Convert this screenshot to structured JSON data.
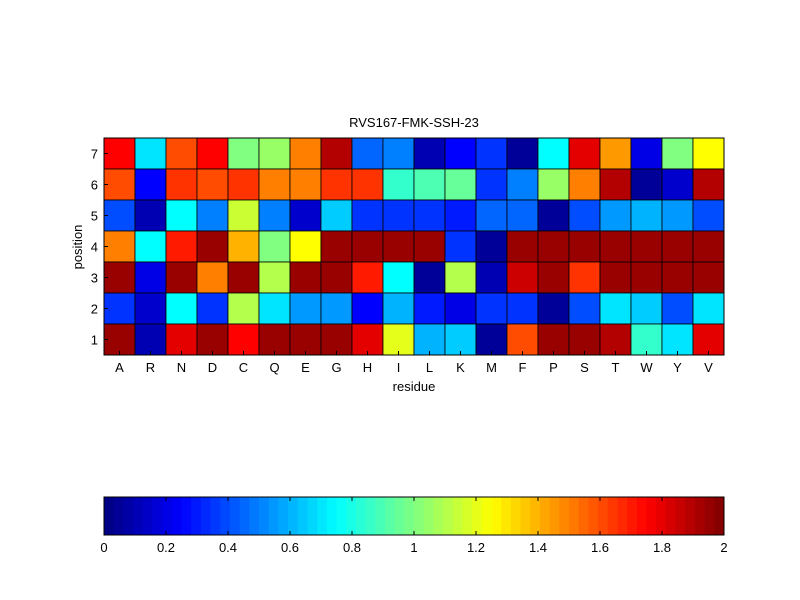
{
  "chart_data": {
    "type": "heatmap",
    "title": "RVS167-FMK-SSH-23",
    "xlabel": "residue",
    "ylabel": "position",
    "x_categories": [
      "A",
      "R",
      "N",
      "D",
      "C",
      "Q",
      "E",
      "G",
      "H",
      "I",
      "L",
      "K",
      "M",
      "F",
      "P",
      "S",
      "T",
      "W",
      "Y",
      "V"
    ],
    "y_categories": [
      "7",
      "6",
      "5",
      "4",
      "3",
      "2",
      "1"
    ],
    "values": [
      [
        1.75,
        0.7,
        1.6,
        1.75,
        1.0,
        1.05,
        1.5,
        1.9,
        0.45,
        0.5,
        0.1,
        0.25,
        0.35,
        0.05,
        0.75,
        1.8,
        1.45,
        0.2,
        1.0,
        1.25
      ],
      [
        1.6,
        0.25,
        1.65,
        1.6,
        1.65,
        1.5,
        1.5,
        1.65,
        1.65,
        0.85,
        0.9,
        0.95,
        0.35,
        0.5,
        1.05,
        1.5,
        1.9,
        0.05,
        0.15,
        1.9
      ],
      [
        0.4,
        0.1,
        0.75,
        0.5,
        1.15,
        0.5,
        0.15,
        0.65,
        0.35,
        0.35,
        0.35,
        0.3,
        0.45,
        0.45,
        0.05,
        0.4,
        0.55,
        0.6,
        0.55,
        0.4
      ],
      [
        1.5,
        0.75,
        1.7,
        1.95,
        1.4,
        1.0,
        1.25,
        1.95,
        1.95,
        1.95,
        1.95,
        0.35,
        0.05,
        1.95,
        1.95,
        1.95,
        1.95,
        1.95,
        1.95,
        1.95
      ],
      [
        1.95,
        0.2,
        1.95,
        1.5,
        1.95,
        1.1,
        1.95,
        1.95,
        1.7,
        0.75,
        0.05,
        1.1,
        0.1,
        1.85,
        1.95,
        1.65,
        1.95,
        1.95,
        1.95,
        1.95
      ],
      [
        0.35,
        0.15,
        0.75,
        0.35,
        1.1,
        0.7,
        0.55,
        0.55,
        0.25,
        0.6,
        0.3,
        0.2,
        0.35,
        0.35,
        0.05,
        0.4,
        0.7,
        0.65,
        0.4,
        0.7
      ],
      [
        1.95,
        0.1,
        1.8,
        1.95,
        1.75,
        1.95,
        1.95,
        1.95,
        1.8,
        1.2,
        0.6,
        0.65,
        0.05,
        1.6,
        1.95,
        1.95,
        1.9,
        0.85,
        0.7,
        1.8
      ]
    ],
    "colorbar": {
      "range": [
        0,
        2
      ],
      "ticks": [
        0,
        0.2,
        0.4,
        0.6,
        0.8,
        1,
        1.2,
        1.4,
        1.6,
        1.8,
        2
      ],
      "colormap": "jet"
    }
  }
}
